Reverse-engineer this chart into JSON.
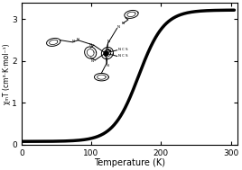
{
  "title": "",
  "xlabel": "Temperature (K)",
  "ylabel": "χₘT (cm³·K·mol⁻¹)",
  "xlim": [
    0,
    310
  ],
  "ylim": [
    0,
    3.4
  ],
  "xticks": [
    0,
    100,
    200,
    300
  ],
  "yticks": [
    0,
    1,
    2,
    3
  ],
  "background_color": "#ffffff",
  "line_color": "#000000",
  "T_half": 168,
  "T_min": 2,
  "T_max": 305,
  "chi_low": 0.08,
  "chi_high": 3.22,
  "steepness": 0.055
}
